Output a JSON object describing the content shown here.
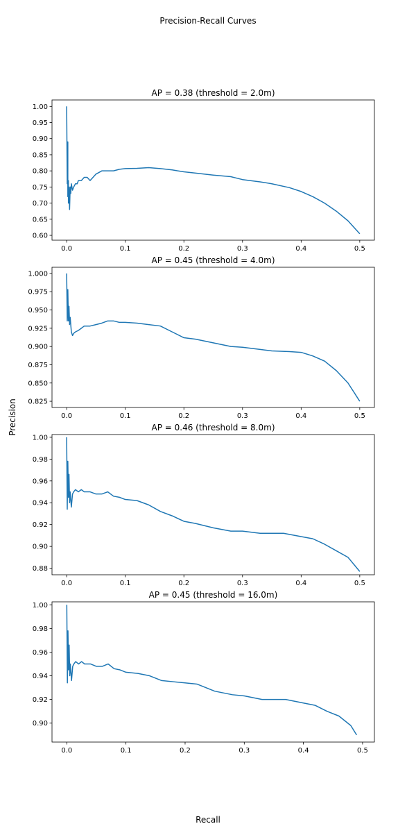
{
  "figure": {
    "title": "Precision-Recall Curves",
    "xlabel": "Recall",
    "ylabel": "Precision",
    "line_color": "#1f77b4"
  },
  "chart_data": [
    {
      "type": "line",
      "title": "AP = 0.38 (threshold = 2.0m)",
      "xlim": [
        -0.025,
        0.525
      ],
      "ylim": [
        0.585,
        1.02
      ],
      "xticks": [
        0.0,
        0.1,
        0.2,
        0.3,
        0.4,
        0.5
      ],
      "xtick_labels": [
        "0.0",
        "0.1",
        "0.2",
        "0.3",
        "0.4",
        "0.5"
      ],
      "yticks": [
        0.6,
        0.65,
        0.7,
        0.75,
        0.8,
        0.85,
        0.9,
        0.95,
        1.0
      ],
      "ytick_labels": [
        "0.60",
        "0.65",
        "0.70",
        "0.75",
        "0.80",
        "0.85",
        "0.90",
        "0.95",
        "1.00"
      ],
      "series": [
        {
          "x": [
            0.0,
            0.001,
            0.002,
            0.002,
            0.003,
            0.003,
            0.004,
            0.005,
            0.006,
            0.007,
            0.008,
            0.01,
            0.012,
            0.015,
            0.018,
            0.02,
            0.025,
            0.03,
            0.035,
            0.04,
            0.05,
            0.06,
            0.07,
            0.08,
            0.09,
            0.1,
            0.12,
            0.14,
            0.16,
            0.18,
            0.2,
            0.22,
            0.25,
            0.28,
            0.3,
            0.33,
            0.35,
            0.38,
            0.4,
            0.42,
            0.44,
            0.46,
            0.48,
            0.5
          ],
          "y": [
            1.0,
            0.76,
            0.89,
            0.72,
            0.77,
            0.7,
            0.75,
            0.68,
            0.75,
            0.73,
            0.76,
            0.74,
            0.75,
            0.76,
            0.76,
            0.77,
            0.77,
            0.78,
            0.78,
            0.77,
            0.79,
            0.8,
            0.8,
            0.8,
            0.805,
            0.807,
            0.808,
            0.81,
            0.807,
            0.803,
            0.797,
            0.793,
            0.787,
            0.782,
            0.773,
            0.766,
            0.76,
            0.748,
            0.736,
            0.72,
            0.7,
            0.675,
            0.645,
            0.605
          ]
        }
      ]
    },
    {
      "type": "line",
      "title": "AP = 0.45 (threshold = 4.0m)",
      "xlim": [
        -0.025,
        0.525
      ],
      "ylim": [
        0.8165,
        1.0085
      ],
      "xticks": [
        0.0,
        0.1,
        0.2,
        0.3,
        0.4,
        0.5
      ],
      "xtick_labels": [
        "0.0",
        "0.1",
        "0.2",
        "0.3",
        "0.4",
        "0.5"
      ],
      "yticks": [
        0.825,
        0.85,
        0.875,
        0.9,
        0.925,
        0.95,
        0.975,
        1.0
      ],
      "ytick_labels": [
        "0.825",
        "0.850",
        "0.875",
        "0.900",
        "0.925",
        "0.950",
        "0.975",
        "1.000"
      ],
      "series": [
        {
          "x": [
            0.0,
            0.001,
            0.002,
            0.003,
            0.004,
            0.005,
            0.006,
            0.008,
            0.01,
            0.012,
            0.015,
            0.02,
            0.025,
            0.03,
            0.04,
            0.05,
            0.06,
            0.07,
            0.08,
            0.09,
            0.1,
            0.12,
            0.14,
            0.16,
            0.18,
            0.2,
            0.22,
            0.25,
            0.28,
            0.3,
            0.33,
            0.35,
            0.38,
            0.4,
            0.42,
            0.44,
            0.46,
            0.48,
            0.5
          ],
          "y": [
            1.0,
            0.935,
            0.978,
            0.935,
            0.955,
            0.93,
            0.94,
            0.92,
            0.915,
            0.918,
            0.92,
            0.922,
            0.925,
            0.928,
            0.928,
            0.93,
            0.932,
            0.935,
            0.935,
            0.933,
            0.933,
            0.932,
            0.93,
            0.928,
            0.92,
            0.912,
            0.91,
            0.905,
            0.9,
            0.899,
            0.896,
            0.894,
            0.893,
            0.892,
            0.887,
            0.88,
            0.867,
            0.85,
            0.825
          ]
        }
      ]
    },
    {
      "type": "line",
      "title": "AP = 0.46 (threshold = 8.0m)",
      "xlim": [
        -0.025,
        0.525
      ],
      "ylim": [
        0.874,
        1.0025
      ],
      "xticks": [
        0.0,
        0.1,
        0.2,
        0.3,
        0.4,
        0.5
      ],
      "xtick_labels": [
        "0.0",
        "0.1",
        "0.2",
        "0.3",
        "0.4",
        "0.5"
      ],
      "yticks": [
        0.88,
        0.9,
        0.92,
        0.94,
        0.96,
        0.98,
        1.0
      ],
      "ytick_labels": [
        "0.88",
        "0.90",
        "0.92",
        "0.94",
        "0.96",
        "0.98",
        "1.00"
      ],
      "series": [
        {
          "x": [
            0.0,
            0.001,
            0.002,
            0.003,
            0.004,
            0.005,
            0.006,
            0.008,
            0.01,
            0.012,
            0.015,
            0.02,
            0.025,
            0.03,
            0.04,
            0.05,
            0.06,
            0.07,
            0.08,
            0.09,
            0.1,
            0.12,
            0.14,
            0.16,
            0.18,
            0.2,
            0.22,
            0.25,
            0.28,
            0.3,
            0.33,
            0.35,
            0.37,
            0.4,
            0.42,
            0.44,
            0.46,
            0.48,
            0.5
          ],
          "y": [
            1.0,
            0.934,
            0.978,
            0.945,
            0.966,
            0.94,
            0.95,
            0.936,
            0.948,
            0.95,
            0.952,
            0.95,
            0.952,
            0.95,
            0.95,
            0.948,
            0.948,
            0.95,
            0.946,
            0.945,
            0.943,
            0.942,
            0.938,
            0.932,
            0.928,
            0.923,
            0.921,
            0.917,
            0.914,
            0.914,
            0.912,
            0.912,
            0.912,
            0.909,
            0.907,
            0.902,
            0.896,
            0.89,
            0.877
          ]
        }
      ]
    },
    {
      "type": "line",
      "title": "AP = 0.45 (threshold = 16.0m)",
      "xlim": [
        -0.025,
        0.52
      ],
      "ylim": [
        0.884,
        1.0025
      ],
      "xticks": [
        0.0,
        0.1,
        0.2,
        0.3,
        0.4,
        0.5
      ],
      "xtick_labels": [
        "0.0",
        "0.1",
        "0.2",
        "0.3",
        "0.4",
        "0.5"
      ],
      "yticks": [
        0.9,
        0.92,
        0.94,
        0.96,
        0.98,
        1.0
      ],
      "ytick_labels": [
        "0.90",
        "0.92",
        "0.94",
        "0.96",
        "0.98",
        "1.00"
      ],
      "series": [
        {
          "x": [
            0.0,
            0.001,
            0.002,
            0.003,
            0.004,
            0.005,
            0.006,
            0.008,
            0.01,
            0.012,
            0.015,
            0.02,
            0.025,
            0.03,
            0.04,
            0.05,
            0.06,
            0.07,
            0.08,
            0.09,
            0.1,
            0.12,
            0.14,
            0.16,
            0.18,
            0.2,
            0.22,
            0.25,
            0.28,
            0.3,
            0.33,
            0.35,
            0.37,
            0.4,
            0.42,
            0.44,
            0.46,
            0.48,
            0.49
          ],
          "y": [
            1.0,
            0.934,
            0.978,
            0.945,
            0.966,
            0.94,
            0.95,
            0.936,
            0.948,
            0.95,
            0.952,
            0.95,
            0.952,
            0.95,
            0.95,
            0.948,
            0.948,
            0.95,
            0.946,
            0.945,
            0.943,
            0.942,
            0.94,
            0.936,
            0.935,
            0.934,
            0.933,
            0.927,
            0.924,
            0.923,
            0.92,
            0.92,
            0.92,
            0.917,
            0.915,
            0.91,
            0.906,
            0.898,
            0.89
          ]
        }
      ]
    }
  ]
}
